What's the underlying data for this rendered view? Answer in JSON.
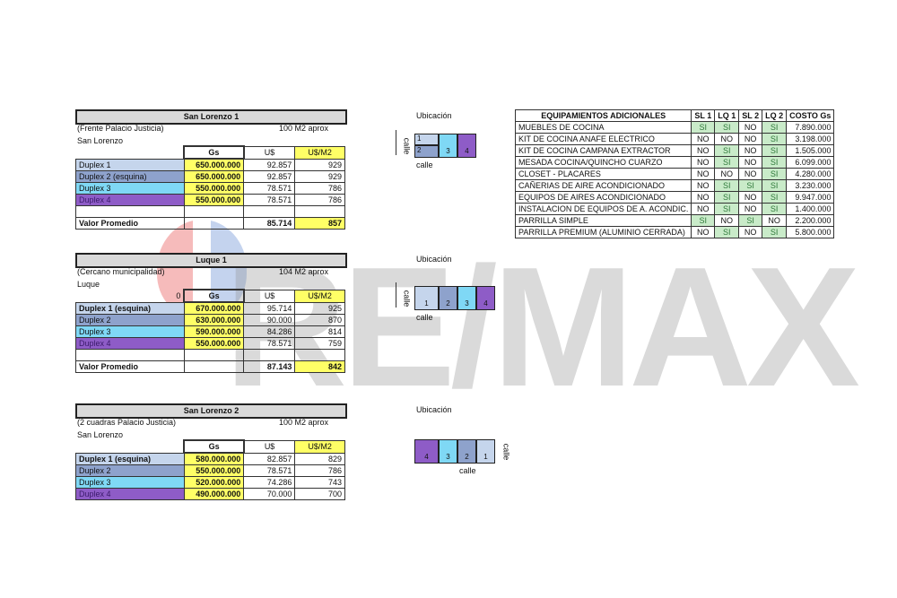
{
  "colors": {
    "duplex1": "#c5d5ec",
    "duplex2": "#8ea2cc",
    "duplex3": "#7fd8f5",
    "duplex4": "#8e5cc7",
    "highlight": "#ffff66",
    "si": "#c9ebc9"
  },
  "watermark": "RE/MAX",
  "headers": {
    "gs": "Gs",
    "us": "U$",
    "usm2": "U$/M2"
  },
  "location_label": "Ubicación",
  "street_label": "calle",
  "blocks": [
    {
      "title": "San Lorenzo 1",
      "subtitle": "(Frente Palacio Justicia)",
      "area": "100  M2 aprox",
      "city": "San Lorenzo",
      "corner": "",
      "rows": [
        {
          "label": "Duplex 1",
          "gs": "650.000.000",
          "us": "92.857",
          "usm2": "929"
        },
        {
          "label": "Duplex 2 (esquina)",
          "gs": "650.000.000",
          "us": "92.857",
          "usm2": "929"
        },
        {
          "label": "Duplex 3",
          "gs": "550.000.000",
          "us": "78.571",
          "usm2": "786"
        },
        {
          "label": "Duplex 4",
          "gs": "550.000.000",
          "us": "78.571",
          "usm2": "786"
        }
      ],
      "avg_label": "Valor Promedio",
      "avg_us": "85.714",
      "avg_usm2": "857",
      "lots": [
        "1",
        "2",
        "3",
        "4"
      ]
    },
    {
      "title": "Luque 1",
      "subtitle": "(Cercano municipalidad)",
      "area": "104  M2 aprox",
      "city": "Luque",
      "corner": "0",
      "rows": [
        {
          "label": "Duplex 1 (esquina)",
          "gs": "670.000.000",
          "us": "95.714",
          "usm2": "925"
        },
        {
          "label": "Duplex 2",
          "gs": "630.000.000",
          "us": "90.000",
          "usm2": "870"
        },
        {
          "label": "Duplex 3",
          "gs": "590.000.000",
          "us": "84.286",
          "usm2": "814"
        },
        {
          "label": "Duplex 4",
          "gs": "550.000.000",
          "us": "78.571",
          "usm2": "759"
        }
      ],
      "avg_label": "Valor Promedio",
      "avg_us": "87.143",
      "avg_usm2": "842",
      "lots": [
        "1",
        "2",
        "3",
        "4"
      ]
    },
    {
      "title": "San Lorenzo 2",
      "subtitle": "(2 cuadras Palacio Justicia)",
      "area": "100  M2 aprox",
      "city": "San Lorenzo",
      "corner": "",
      "rows": [
        {
          "label": "Duplex 1 (esquina)",
          "gs": "580.000.000",
          "us": "82.857",
          "usm2": "829"
        },
        {
          "label": "Duplex 2",
          "gs": "550.000.000",
          "us": "78.571",
          "usm2": "786"
        },
        {
          "label": "Duplex 3",
          "gs": "520.000.000",
          "us": "74.286",
          "usm2": "743"
        },
        {
          "label": "Duplex 4",
          "gs": "490.000.000",
          "us": "70.000",
          "usm2": "700"
        }
      ],
      "lots": [
        "4",
        "3",
        "2",
        "1"
      ]
    }
  ],
  "equipment": {
    "headers": [
      "EQUIPAMIENTOS ADICIONALES",
      "SL 1",
      "LQ 1",
      "SL 2",
      "LQ 2",
      "COSTO Gs"
    ],
    "rows": [
      [
        "MUEBLES DE COCINA",
        "SI",
        "SI",
        "NO",
        "SI",
        "7.890.000"
      ],
      [
        "KIT DE COCINA ANAFE ELECTRICO",
        "NO",
        "NO",
        "NO",
        "SI",
        "3.198.000"
      ],
      [
        "KIT DE COCINA CAMPANA EXTRACTOR",
        "NO",
        "SI",
        "NO",
        "SI",
        "1.505.000"
      ],
      [
        "MESADA COCINA/QUINCHO CUARZO",
        "NO",
        "SI",
        "NO",
        "SI",
        "6.099.000"
      ],
      [
        "CLOSET - PLACARES",
        "NO",
        "NO",
        "NO",
        "SI",
        "4.280.000"
      ],
      [
        "CAÑERIAS DE AIRE ACONDICIONADO",
        "NO",
        "SI",
        "SI",
        "SI",
        "3.230.000"
      ],
      [
        "EQUIPOS DE AIRES ACONDICIONADO",
        "NO",
        "SI",
        "NO",
        "SI",
        "9.947.000"
      ],
      [
        "INSTALACION DE EQUIPOS DE A. ACONDIC.",
        "NO",
        "SI",
        "NO",
        "SI",
        "1.400.000"
      ],
      [
        "PARRILLA SIMPLE",
        "SI",
        "NO",
        "SI",
        "NO",
        "2.200.000"
      ],
      [
        "PARRILLA PREMIUM (ALUMINIO CERRADA)",
        "NO",
        "SI",
        "NO",
        "SI",
        "5.800.000"
      ]
    ]
  }
}
